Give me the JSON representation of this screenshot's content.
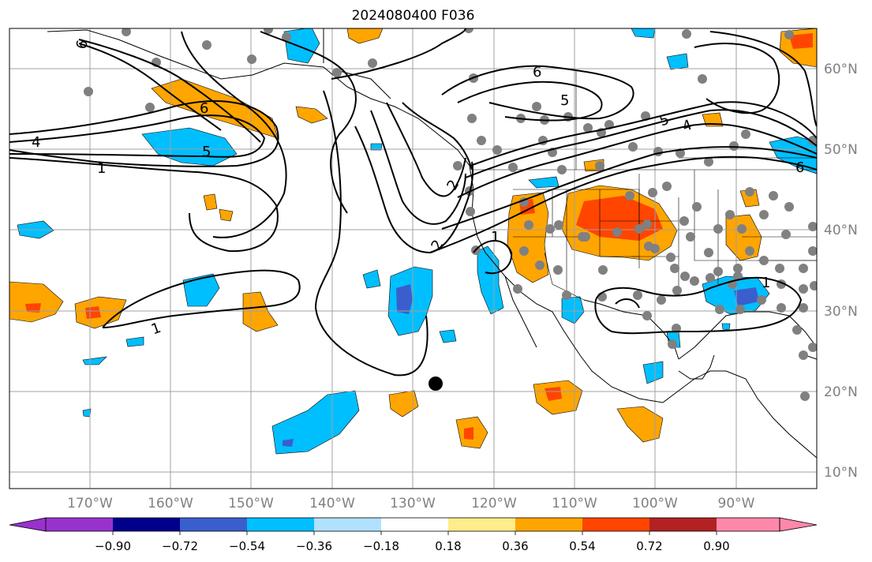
{
  "title": "2024080400 F036",
  "map": {
    "lon_labels": [
      "170°W",
      "160°W",
      "150°W",
      "140°W",
      "130°W",
      "120°W",
      "110°W",
      "100°W",
      "90°W"
    ],
    "lat_labels": [
      "60°N",
      "50°N",
      "40°N",
      "30°N",
      "20°N",
      "10°N"
    ],
    "axis_label_color": "#808080",
    "gridline_color": "#a0a0a0",
    "contour_labels": [
      "6",
      "6",
      "5",
      "4",
      "1",
      "2",
      "2",
      "1",
      "6",
      "5",
      "5",
      "4",
      "6",
      "1",
      "1"
    ],
    "marker_color": "#000000",
    "station_color": "#808080"
  },
  "colorbar": {
    "ticks": [
      "−0.90",
      "−0.72",
      "−0.54",
      "−0.36",
      "−0.18",
      "0.18",
      "0.36",
      "0.54",
      "0.72",
      "0.90"
    ],
    "colors": [
      "#9932cc",
      "#00008b",
      "#3a5fcd",
      "#00bfff",
      "#b0e2ff",
      "#ffffff",
      "#ffec8b",
      "#ffa500",
      "#ff4500",
      "#b22222",
      "#ff88aa"
    ]
  }
}
